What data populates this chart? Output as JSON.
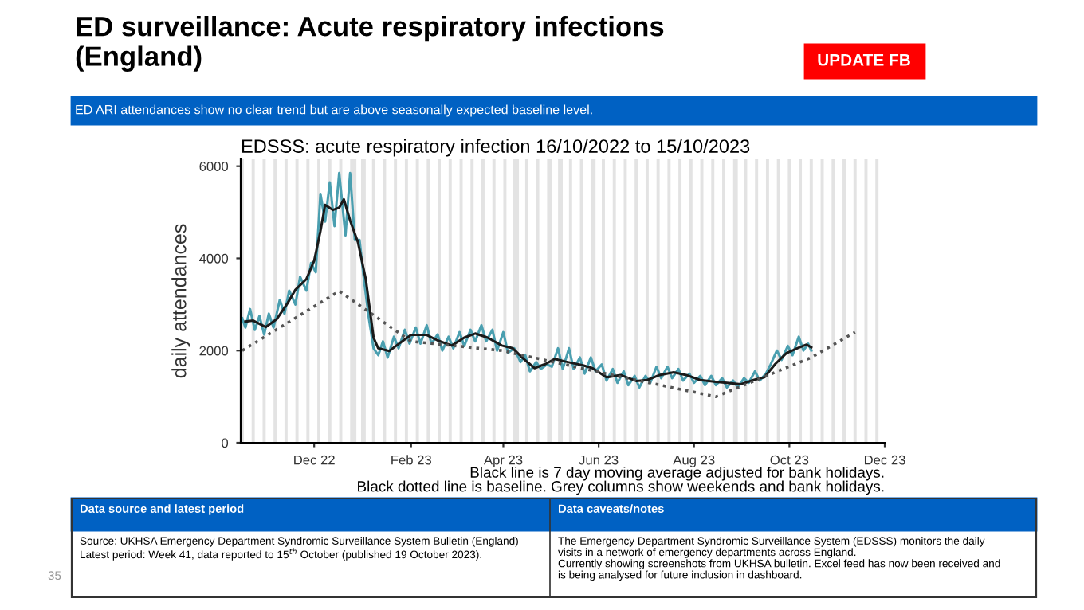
{
  "chart_data": {
    "type": "line",
    "title": "EDSSS: acute respiratory infection 16/10/2022 to 15/10/2023",
    "ylabel": "daily attendances",
    "annotations": [
      "ED surveillance: Acute respiratory infections\n(England)",
      "UPDATE FB",
      "ED ARI attendances show no clear trend but are above seasonally expected baseline level.",
      "Black line is 7 day moving average adjusted for bank holidays.\nBlack dotted line is baseline. Grey columns show weekends and bank holidays.",
      "Data source and latest period",
      "Data caveats/notes",
      "Source: UKHSA Emergency Department Syndromic Surveillance System Bulletin (England)\nLatest period: Week 41, data reported to 15$^{th}$ October (published 19 October 2023).",
      "The Emergency Department Syndromic Surveillance System (EDSSS) monitors the daily\nvisits in a network of emergency departments across England.\nCurrently showing screenshots from UKHSA bulletin. Excel feed has now been received and\nis being analysed for future inclusion in dashboard.",
      "35"
    ],
    "xlim": [
      "2022-10-15",
      "2023-12-01"
    ],
    "xticks": [
      {
        "value": "2022-12-01",
        "label": "Dec 22"
      },
      {
        "value": "2023-02-01",
        "label": "Feb 23"
      },
      {
        "value": "2023-04-01",
        "label": "Apr 23"
      },
      {
        "value": "2023-06-01",
        "label": "Jun 23"
      },
      {
        "value": "2023-08-01",
        "label": "Aug 23"
      },
      {
        "value": "2023-10-01",
        "label": "Oct 23"
      },
      {
        "value": "2023-12-01",
        "label": "Dec 23"
      }
    ],
    "ylim": [
      0,
      6150
    ],
    "yticks": [
      0,
      2000,
      4000,
      6000
    ],
    "grid": false,
    "legend": false,
    "series": [
      {
        "color": "#4a9fb0",
        "line_style": "solid",
        "x": [
          "2022-10-16",
          "2022-10-18",
          "2022-10-21",
          "2022-10-24",
          "2022-10-27",
          "2022-10-30",
          "2022-11-02",
          "2022-11-05",
          "2022-11-09",
          "2022-11-12",
          "2022-11-15",
          "2022-11-19",
          "2022-11-22",
          "2022-11-26",
          "2022-11-29",
          "2022-12-02",
          "2022-12-05",
          "2022-12-08",
          "2022-12-11",
          "2022-12-14",
          "2022-12-17",
          "2022-12-21",
          "2022-12-24",
          "2022-12-27",
          "2022-12-30",
          "2023-01-02",
          "2023-01-05",
          "2023-01-08",
          "2023-01-11",
          "2023-01-14",
          "2023-01-17",
          "2023-01-21",
          "2023-01-24",
          "2023-01-28",
          "2023-01-31",
          "2023-02-04",
          "2023-02-07",
          "2023-02-11",
          "2023-02-14",
          "2023-02-18",
          "2023-02-21",
          "2023-02-25",
          "2023-02-28",
          "2023-03-04",
          "2023-03-07",
          "2023-03-11",
          "2023-03-14",
          "2023-03-18",
          "2023-03-21",
          "2023-03-25",
          "2023-03-28",
          "2023-04-01",
          "2023-04-04",
          "2023-04-08",
          "2023-04-12",
          "2023-04-15",
          "2023-04-18",
          "2023-04-22",
          "2023-04-25",
          "2023-04-29",
          "2023-05-02",
          "2023-05-06",
          "2023-05-09",
          "2023-05-13",
          "2023-05-16",
          "2023-05-20",
          "2023-05-23",
          "2023-05-27",
          "2023-05-30",
          "2023-06-03",
          "2023-06-06",
          "2023-06-10",
          "2023-06-13",
          "2023-06-17",
          "2023-06-20",
          "2023-06-24",
          "2023-06-27",
          "2023-07-01",
          "2023-07-04",
          "2023-07-08",
          "2023-07-11",
          "2023-07-15",
          "2023-07-18",
          "2023-07-22",
          "2023-07-25",
          "2023-07-29",
          "2023-08-01",
          "2023-08-05",
          "2023-08-08",
          "2023-08-12",
          "2023-08-15",
          "2023-08-19",
          "2023-08-22",
          "2023-08-26",
          "2023-08-29",
          "2023-09-02",
          "2023-09-05",
          "2023-09-09",
          "2023-09-12",
          "2023-09-16",
          "2023-09-19",
          "2023-09-23",
          "2023-09-26",
          "2023-09-30",
          "2023-10-03",
          "2023-10-07",
          "2023-10-10",
          "2023-10-13",
          "2023-10-15"
        ],
        "values": [
          2700,
          2500,
          2900,
          2450,
          2750,
          2350,
          2800,
          2500,
          3100,
          2800,
          3300,
          3000,
          3600,
          3300,
          3900,
          3700,
          5400,
          4800,
          5650,
          4700,
          5850,
          4500,
          5850,
          4400,
          4400,
          3500,
          2700,
          2050,
          1900,
          2200,
          1850,
          2300,
          2050,
          2450,
          2150,
          2500,
          2150,
          2550,
          2150,
          2350,
          2000,
          2300,
          2050,
          2400,
          2100,
          2450,
          2200,
          2550,
          2200,
          2450,
          2000,
          2400,
          1950,
          2050,
          1750,
          1900,
          1550,
          1750,
          1600,
          1700,
          1650,
          2050,
          1600,
          2050,
          1600,
          1850,
          1500,
          1850,
          1550,
          1700,
          1350,
          1600,
          1300,
          1550,
          1250,
          1450,
          1200,
          1450,
          1300,
          1650,
          1400,
          1650,
          1400,
          1600,
          1350,
          1500,
          1300,
          1450,
          1250,
          1450,
          1250,
          1400,
          1200,
          1350,
          1200,
          1400,
          1300,
          1550,
          1350,
          1500,
          1700,
          2000,
          1800,
          2100,
          1900,
          2300,
          2000,
          2150,
          2000
        ]
      },
      {
        "color": "#1a1a1a",
        "line_style": "solid",
        "x": [
          "2022-10-18",
          "2022-10-23",
          "2022-10-31",
          "2022-11-07",
          "2022-11-14",
          "2022-11-19",
          "2022-11-26",
          "2022-12-01",
          "2022-12-05",
          "2022-12-08",
          "2022-12-13",
          "2022-12-17",
          "2022-12-20",
          "2022-12-24",
          "2022-12-29",
          "2023-01-03",
          "2023-01-08",
          "2023-01-11",
          "2023-01-18",
          "2023-01-25",
          "2023-02-01",
          "2023-02-11",
          "2023-02-18",
          "2023-02-27",
          "2023-03-07",
          "2023-03-14",
          "2023-03-22",
          "2023-03-31",
          "2023-04-07",
          "2023-04-14",
          "2023-04-21",
          "2023-04-28",
          "2023-05-04",
          "2023-05-11",
          "2023-05-22",
          "2023-05-28",
          "2023-06-06",
          "2023-06-15",
          "2023-06-25",
          "2023-07-02",
          "2023-07-10",
          "2023-07-19",
          "2023-07-27",
          "2023-08-05",
          "2023-08-15",
          "2023-08-22",
          "2023-08-31",
          "2023-09-08",
          "2023-09-15",
          "2023-09-22",
          "2023-09-29",
          "2023-10-06",
          "2023-10-12",
          "2023-10-15"
        ],
        "values": [
          2630,
          2650,
          2510,
          2680,
          3030,
          3320,
          3550,
          3950,
          4590,
          5160,
          5050,
          5100,
          5280,
          4820,
          4350,
          3550,
          2280,
          2050,
          1990,
          2170,
          2340,
          2340,
          2220,
          2110,
          2280,
          2370,
          2280,
          2110,
          2050,
          1820,
          1620,
          1710,
          1820,
          1760,
          1680,
          1620,
          1420,
          1470,
          1340,
          1360,
          1470,
          1530,
          1470,
          1360,
          1320,
          1300,
          1270,
          1360,
          1420,
          1710,
          1940,
          2050,
          2130,
          2070
        ]
      },
      {
        "color": "#555555",
        "line_style": "dotted",
        "x": [
          "2022-10-16",
          "2022-12-17",
          "2023-02-01",
          "2023-03-31",
          "2023-06-15",
          "2023-08-15",
          "2023-10-15",
          "2023-11-12"
        ],
        "values": [
          2000,
          3290,
          2200,
          2000,
          1430,
          1000,
          1850,
          2400
        ]
      }
    ],
    "bands": [
      {
        "axis": "x",
        "from": "2022-10-15",
        "to": "2022-10-17",
        "color": "#e3e3e3"
      },
      {
        "axis": "x",
        "from": "2022-10-22",
        "to": "2022-10-24",
        "color": "#e3e3e3"
      },
      {
        "axis": "x",
        "from": "2022-10-29",
        "to": "2022-10-31",
        "color": "#e3e3e3"
      },
      {
        "axis": "x",
        "from": "2022-11-05",
        "to": "2022-11-07",
        "color": "#e3e3e3"
      },
      {
        "axis": "x",
        "from": "2022-11-12",
        "to": "2022-11-14",
        "color": "#e3e3e3"
      },
      {
        "axis": "x",
        "from": "2022-11-19",
        "to": "2022-11-21",
        "color": "#e3e3e3"
      },
      {
        "axis": "x",
        "from": "2022-11-26",
        "to": "2022-11-28",
        "color": "#e3e3e3"
      },
      {
        "axis": "x",
        "from": "2022-12-03",
        "to": "2022-12-05",
        "color": "#e3e3e3"
      },
      {
        "axis": "x",
        "from": "2022-12-10",
        "to": "2022-12-12",
        "color": "#e3e3e3"
      },
      {
        "axis": "x",
        "from": "2022-12-17",
        "to": "2022-12-19",
        "color": "#e3e3e3"
      },
      {
        "axis": "x",
        "from": "2022-12-24",
        "to": "2022-12-28",
        "color": "#e3e3e3"
      },
      {
        "axis": "x",
        "from": "2022-12-31",
        "to": "2023-01-03",
        "color": "#e3e3e3"
      },
      {
        "axis": "x",
        "from": "2023-01-07",
        "to": "2023-01-09",
        "color": "#e3e3e3"
      },
      {
        "axis": "x",
        "from": "2023-01-14",
        "to": "2023-01-16",
        "color": "#e3e3e3"
      },
      {
        "axis": "x",
        "from": "2023-01-21",
        "to": "2023-01-23",
        "color": "#e3e3e3"
      },
      {
        "axis": "x",
        "from": "2023-01-28",
        "to": "2023-01-30",
        "color": "#e3e3e3"
      },
      {
        "axis": "x",
        "from": "2023-02-04",
        "to": "2023-02-06",
        "color": "#e3e3e3"
      },
      {
        "axis": "x",
        "from": "2023-02-11",
        "to": "2023-02-13",
        "color": "#e3e3e3"
      },
      {
        "axis": "x",
        "from": "2023-02-18",
        "to": "2023-02-20",
        "color": "#e3e3e3"
      },
      {
        "axis": "x",
        "from": "2023-02-25",
        "to": "2023-02-27",
        "color": "#e3e3e3"
      },
      {
        "axis": "x",
        "from": "2023-03-04",
        "to": "2023-03-06",
        "color": "#e3e3e3"
      },
      {
        "axis": "x",
        "from": "2023-03-11",
        "to": "2023-03-13",
        "color": "#e3e3e3"
      },
      {
        "axis": "x",
        "from": "2023-03-18",
        "to": "2023-03-20",
        "color": "#e3e3e3"
      },
      {
        "axis": "x",
        "from": "2023-03-25",
        "to": "2023-03-27",
        "color": "#e3e3e3"
      },
      {
        "axis": "x",
        "from": "2023-04-01",
        "to": "2023-04-03",
        "color": "#e3e3e3"
      },
      {
        "axis": "x",
        "from": "2023-04-07",
        "to": "2023-04-11",
        "color": "#e3e3e3"
      },
      {
        "axis": "x",
        "from": "2023-04-15",
        "to": "2023-04-17",
        "color": "#e3e3e3"
      },
      {
        "axis": "x",
        "from": "2023-04-22",
        "to": "2023-04-24",
        "color": "#e3e3e3"
      },
      {
        "axis": "x",
        "from": "2023-04-29",
        "to": "2023-05-02",
        "color": "#e3e3e3"
      },
      {
        "axis": "x",
        "from": "2023-05-06",
        "to": "2023-05-09",
        "color": "#e3e3e3"
      },
      {
        "axis": "x",
        "from": "2023-05-13",
        "to": "2023-05-15",
        "color": "#e3e3e3"
      },
      {
        "axis": "x",
        "from": "2023-05-20",
        "to": "2023-05-22",
        "color": "#e3e3e3"
      },
      {
        "axis": "x",
        "from": "2023-05-27",
        "to": "2023-05-30",
        "color": "#e3e3e3"
      },
      {
        "axis": "x",
        "from": "2023-06-03",
        "to": "2023-06-05",
        "color": "#e3e3e3"
      },
      {
        "axis": "x",
        "from": "2023-06-10",
        "to": "2023-06-12",
        "color": "#e3e3e3"
      },
      {
        "axis": "x",
        "from": "2023-06-17",
        "to": "2023-06-19",
        "color": "#e3e3e3"
      },
      {
        "axis": "x",
        "from": "2023-06-24",
        "to": "2023-06-26",
        "color": "#e3e3e3"
      },
      {
        "axis": "x",
        "from": "2023-07-01",
        "to": "2023-07-03",
        "color": "#e3e3e3"
      },
      {
        "axis": "x",
        "from": "2023-07-08",
        "to": "2023-07-10",
        "color": "#e3e3e3"
      },
      {
        "axis": "x",
        "from": "2023-07-15",
        "to": "2023-07-17",
        "color": "#e3e3e3"
      },
      {
        "axis": "x",
        "from": "2023-07-22",
        "to": "2023-07-24",
        "color": "#e3e3e3"
      },
      {
        "axis": "x",
        "from": "2023-07-29",
        "to": "2023-07-31",
        "color": "#e3e3e3"
      },
      {
        "axis": "x",
        "from": "2023-08-05",
        "to": "2023-08-07",
        "color": "#e3e3e3"
      },
      {
        "axis": "x",
        "from": "2023-08-12",
        "to": "2023-08-14",
        "color": "#e3e3e3"
      },
      {
        "axis": "x",
        "from": "2023-08-19",
        "to": "2023-08-21",
        "color": "#e3e3e3"
      },
      {
        "axis": "x",
        "from": "2023-08-26",
        "to": "2023-08-29",
        "color": "#e3e3e3"
      },
      {
        "axis": "x",
        "from": "2023-09-02",
        "to": "2023-09-04",
        "color": "#e3e3e3"
      },
      {
        "axis": "x",
        "from": "2023-09-09",
        "to": "2023-09-11",
        "color": "#e3e3e3"
      },
      {
        "axis": "x",
        "from": "2023-09-16",
        "to": "2023-09-18",
        "color": "#e3e3e3"
      },
      {
        "axis": "x",
        "from": "2023-09-23",
        "to": "2023-09-25",
        "color": "#e3e3e3"
      },
      {
        "axis": "x",
        "from": "2023-09-30",
        "to": "2023-10-02",
        "color": "#e3e3e3"
      },
      {
        "axis": "x",
        "from": "2023-10-07",
        "to": "2023-10-09",
        "color": "#e3e3e3"
      },
      {
        "axis": "x",
        "from": "2023-10-14",
        "to": "2023-10-16",
        "color": "#e3e3e3"
      },
      {
        "axis": "x",
        "from": "2023-10-21",
        "to": "2023-10-23",
        "color": "#e3e3e3"
      },
      {
        "axis": "x",
        "from": "2023-10-28",
        "to": "2023-10-30",
        "color": "#e3e3e3"
      },
      {
        "axis": "x",
        "from": "2023-11-04",
        "to": "2023-11-06",
        "color": "#e3e3e3"
      },
      {
        "axis": "x",
        "from": "2023-11-11",
        "to": "2023-11-13",
        "color": "#e3e3e3"
      },
      {
        "axis": "x",
        "from": "2023-11-18",
        "to": "2023-11-20",
        "color": "#e3e3e3"
      },
      {
        "axis": "x",
        "from": "2023-11-25",
        "to": "2023-11-27",
        "color": "#e3e3e3"
      }
    ]
  }
}
